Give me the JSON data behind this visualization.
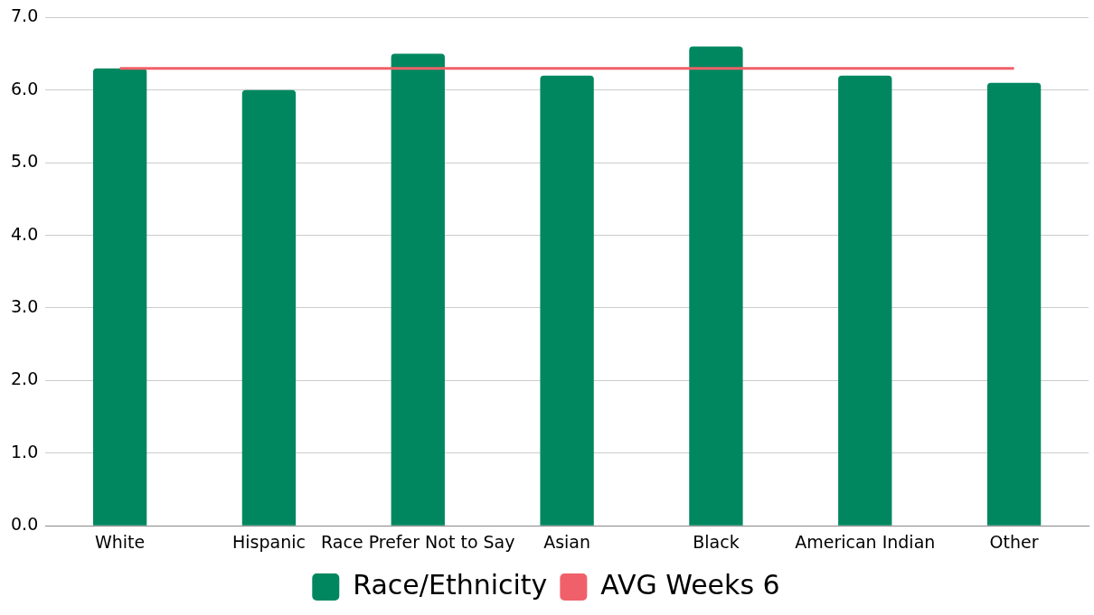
{
  "chart_data": {
    "type": "bar",
    "categories": [
      "White",
      "Hispanic",
      "Race Prefer Not to Say",
      "Asian",
      "Black",
      "American Indian",
      "Other"
    ],
    "series": [
      {
        "name": "Race/Ethnicity",
        "color": "#00875f",
        "values": [
          6.3,
          6.0,
          6.5,
          6.2,
          6.6,
          6.2,
          6.1
        ]
      },
      {
        "name": "AVG Weeks 6",
        "type": "line",
        "color": "#f0606a",
        "values": [
          6.3,
          6.3,
          6.3,
          6.3,
          6.3,
          6.3,
          6.3
        ],
        "marker": "none"
      }
    ],
    "ylim": [
      0,
      7
    ],
    "yticks": [
      {
        "value": 0,
        "label": "0.0"
      },
      {
        "value": 1,
        "label": "1.0"
      },
      {
        "value": 2,
        "label": "2.0"
      },
      {
        "value": 3,
        "label": "3.0"
      },
      {
        "value": 4,
        "label": "4.0"
      },
      {
        "value": 5,
        "label": "5.0"
      },
      {
        "value": 6,
        "label": "6.0"
      },
      {
        "value": 7,
        "label": "7.0"
      }
    ],
    "grid": "y",
    "legend": "bottom"
  }
}
